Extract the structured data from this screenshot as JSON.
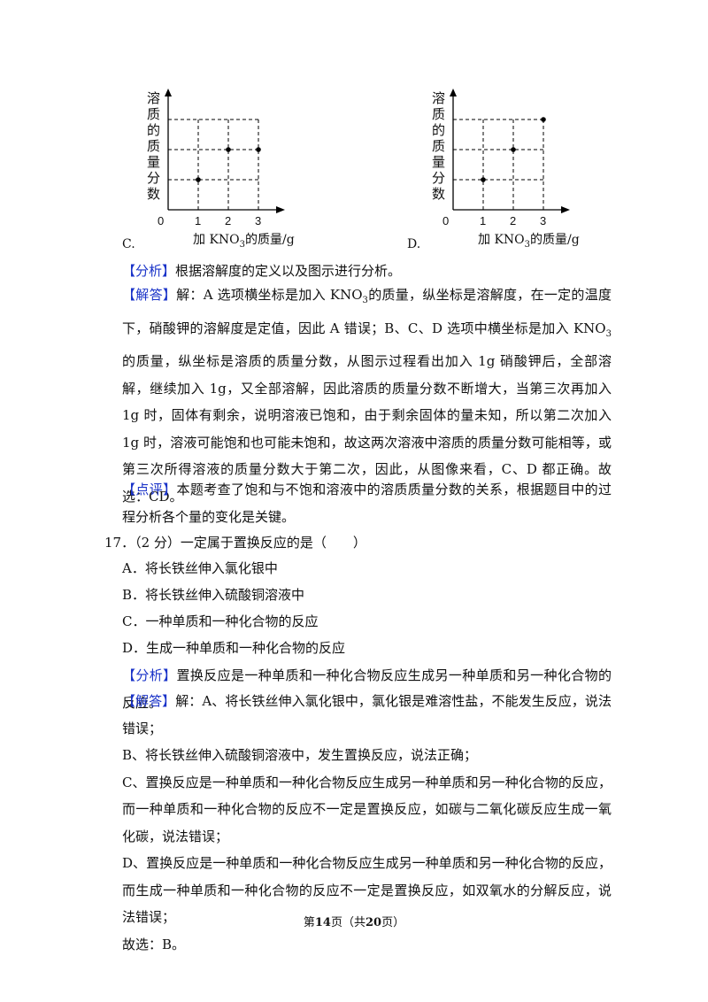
{
  "figures": [
    {
      "option": "C.",
      "y_label": "溶质的质量分数",
      "x_label": [
        "加 KNO",
        "3",
        "的质量/g"
      ],
      "x_ticks": [
        "0",
        "1",
        "2",
        "3"
      ]
    },
    {
      "option": "D.",
      "y_label": "溶质的质量分数",
      "x_label": [
        "加 KNO",
        "3",
        "的质量/g"
      ],
      "x_ticks": [
        "0",
        "1",
        "2",
        "3"
      ]
    }
  ],
  "analysis_1": {
    "tag": "【分析】",
    "text": "根据溶解度的定义以及图示进行分析。"
  },
  "answer_1": {
    "tag": "【解答】",
    "text": [
      "解：A 选项横坐标是加入 KNO",
      "3",
      "的质量，纵坐标是溶解度，在一定的温度下，硝酸钾的溶解度是定值，因此 A 错误；B、C、D 选项中横坐标是加入 KNO",
      "3",
      "的质量，纵坐标是溶质的质量分数，从图示过程看出加入 1g 硝酸钾后，全部溶解，继续加入 1g，又全部溶解，因此溶质的质量分数不断增大，当第三次再加入 1g 时，固体有剩余，说明溶液已饱和，由于剩余固体的量未知，所以第二次加入 1g 时，溶液可能饱和也可能未饱和，故这两次溶液中溶质的质量分数可能相等，或第三次所得溶液的质量分数大于第二次，因此，从图像来看，C、D 都正确。故选：CD。"
    ]
  },
  "comment": {
    "tag": "【点评】",
    "text": "本题考查了饱和与不饱和溶液中的溶质质量分数的关系，根据题目中的过程分析各个量的变化是关键。"
  },
  "question": {
    "number": "17．",
    "stem": "（2 分）一定属于置换反应的是（　　）",
    "options": [
      "A．将长铁丝伸入氯化银中",
      "B．将长铁丝伸入硫酸铜溶液中",
      "C．一种单质和一种化合物的反应",
      "D．生成一种单质和一种化合物的反应"
    ]
  },
  "analysis_2": {
    "tag": "【分析】",
    "text": "置换反应是一种单质和一种化合物反应生成另一种单质和另一种化合物的反应。"
  },
  "answer_2": {
    "tag": "【解答】",
    "lines": [
      "解：A、将长铁丝伸入氯化银中，氯化银是难溶性盐，不能发生反应，说法错误；",
      "B、将长铁丝伸入硫酸铜溶液中，发生置换反应，说法正确；",
      "C、置换反应是一种单质和一种化合物反应生成另一种单质和另一种化合物的反应，而一种单质和一种化合物的反应不一定是置换反应，如碳与二氧化碳反应生成一氧化碳，说法错误；",
      "D、置换反应是一种单质和一种化合物反应生成另一种单质和另一种化合物的反应，而生成一种单质和一种化合物的反应不一定是置换反应，如双氧水的分解反应，说法错误；",
      "故选：B。"
    ]
  },
  "footer": {
    "text": [
      "第",
      "14",
      "页（共",
      "20",
      "页）"
    ]
  }
}
